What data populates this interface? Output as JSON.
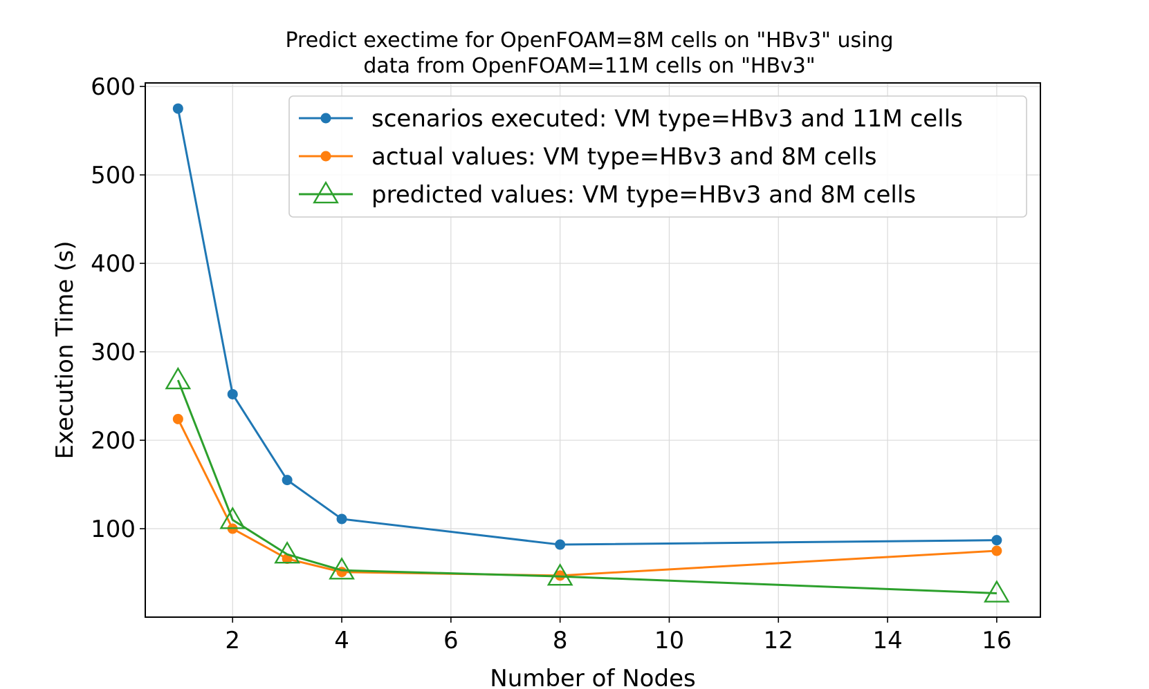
{
  "chart_data": {
    "type": "line",
    "title_lines": [
      "Predict exectime for OpenFOAM=8M cells on \"HBv3\" using",
      "data from OpenFOAM=11M cells on \"HBv3\""
    ],
    "xlabel": "Number of Nodes",
    "ylabel": "Execution Time (s)",
    "xlim": [
      0.4,
      16.8
    ],
    "ylim": [
      0,
      604
    ],
    "xticks": [
      2,
      4,
      6,
      8,
      10,
      12,
      14,
      16
    ],
    "yticks": [
      100,
      200,
      300,
      400,
      500,
      600
    ],
    "grid": true,
    "legend_position": "upper right",
    "x": [
      1,
      2,
      3,
      4,
      8,
      16
    ],
    "series": [
      {
        "name": "scenarios executed: VM type=HBv3 and 11M cells",
        "color": "#1f77b4",
        "marker": "circle",
        "values": [
          575,
          252,
          155,
          111,
          82,
          87
        ]
      },
      {
        "name": "actual values: VM type=HBv3 and 8M cells",
        "color": "#ff7f0e",
        "marker": "circle",
        "values": [
          224,
          100,
          66,
          51,
          47,
          75
        ]
      },
      {
        "name": "predicted values: VM type=HBv3 and 8M cells",
        "color": "#2ca02c",
        "marker": "triangle-open",
        "values": [
          268,
          110,
          71,
          53,
          46,
          27
        ]
      }
    ]
  }
}
